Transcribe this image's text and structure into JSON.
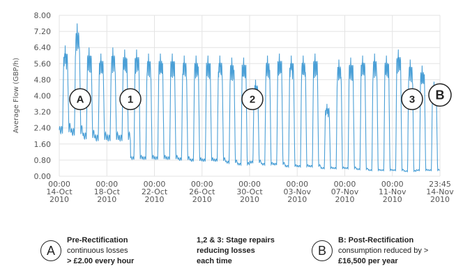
{
  "chart_data": {
    "type": "line",
    "title": "",
    "xlabel": "",
    "ylabel": "Average Flow (GBP/h)",
    "ylim": [
      0,
      8
    ],
    "yticks": [
      "0.00",
      "0.80",
      "1.60",
      "2.40",
      "3.20",
      "4.00",
      "4.80",
      "5.60",
      "6.40",
      "7.20",
      "8.00"
    ],
    "xticks": [
      {
        "time": "00:00",
        "date": "14-Oct",
        "year": "2010"
      },
      {
        "time": "00:00",
        "date": "18-Oct",
        "year": "2010"
      },
      {
        "time": "00:00",
        "date": "22-Oct",
        "year": "2010"
      },
      {
        "time": "00:00",
        "date": "26-Oct",
        "year": "2010"
      },
      {
        "time": "00:00",
        "date": "30-Oct",
        "year": "2010"
      },
      {
        "time": "00:00",
        "date": "03-Nov",
        "year": "2010"
      },
      {
        "time": "00:00",
        "date": "07-Nov",
        "year": "2010"
      },
      {
        "time": "00:00",
        "date": "11-Nov",
        "year": "2010"
      },
      {
        "time": "23:45",
        "date": "14-Nov",
        "year": "2010"
      }
    ],
    "grid": true,
    "line_color": "#4a9fd6",
    "series": [
      {
        "daily_min": [
          2.3,
          2.2,
          2.0,
          1.9,
          1.9,
          1.9,
          0.9,
          0.9,
          0.9,
          0.9,
          0.85,
          0.8,
          0.8,
          0.8,
          0.7,
          0.6,
          0.7,
          0.6,
          0.6,
          0.5,
          0.5,
          0.5,
          0.4,
          0.4,
          0.4,
          0.35,
          0.3,
          0.3,
          0.3,
          0.25,
          0.3,
          0.3
        ],
        "daily_max": [
          6.5,
          7.6,
          6.4,
          6.1,
          6.4,
          6.3,
          6.3,
          6.1,
          6.1,
          6.1,
          6.0,
          6.0,
          6.0,
          6.0,
          5.9,
          5.9,
          4.8,
          6.0,
          6.1,
          6.0,
          6.0,
          6.1,
          3.6,
          5.8,
          5.9,
          6.0,
          6.1,
          6.0,
          6.3,
          5.8,
          5.5,
          4.7
        ]
      }
    ],
    "annotations": [
      {
        "label": "A",
        "date": "15-Oct",
        "y": 3.9
      },
      {
        "label": "1",
        "date": "19-Oct",
        "y": 3.9
      },
      {
        "label": "2",
        "date": "30-Oct",
        "y": 3.9
      },
      {
        "label": "3",
        "date": "12-Nov",
        "y": 3.9
      },
      {
        "label": "B",
        "date": "14-Nov",
        "y": 3.9
      }
    ]
  },
  "legend": {
    "a": {
      "symbol": "A",
      "line1": "Pre-Rectification",
      "line2": "continuous losses",
      "line3": "> £2.00 every hour"
    },
    "mid": {
      "line1": "1,2 & 3: Stage repairs",
      "line2": "reducing losses",
      "line3": "each time"
    },
    "b": {
      "symbol": "B",
      "line1": "B: Post-Rectification",
      "line2": "consumption reduced by >",
      "line3": "£16,500 per year"
    }
  }
}
